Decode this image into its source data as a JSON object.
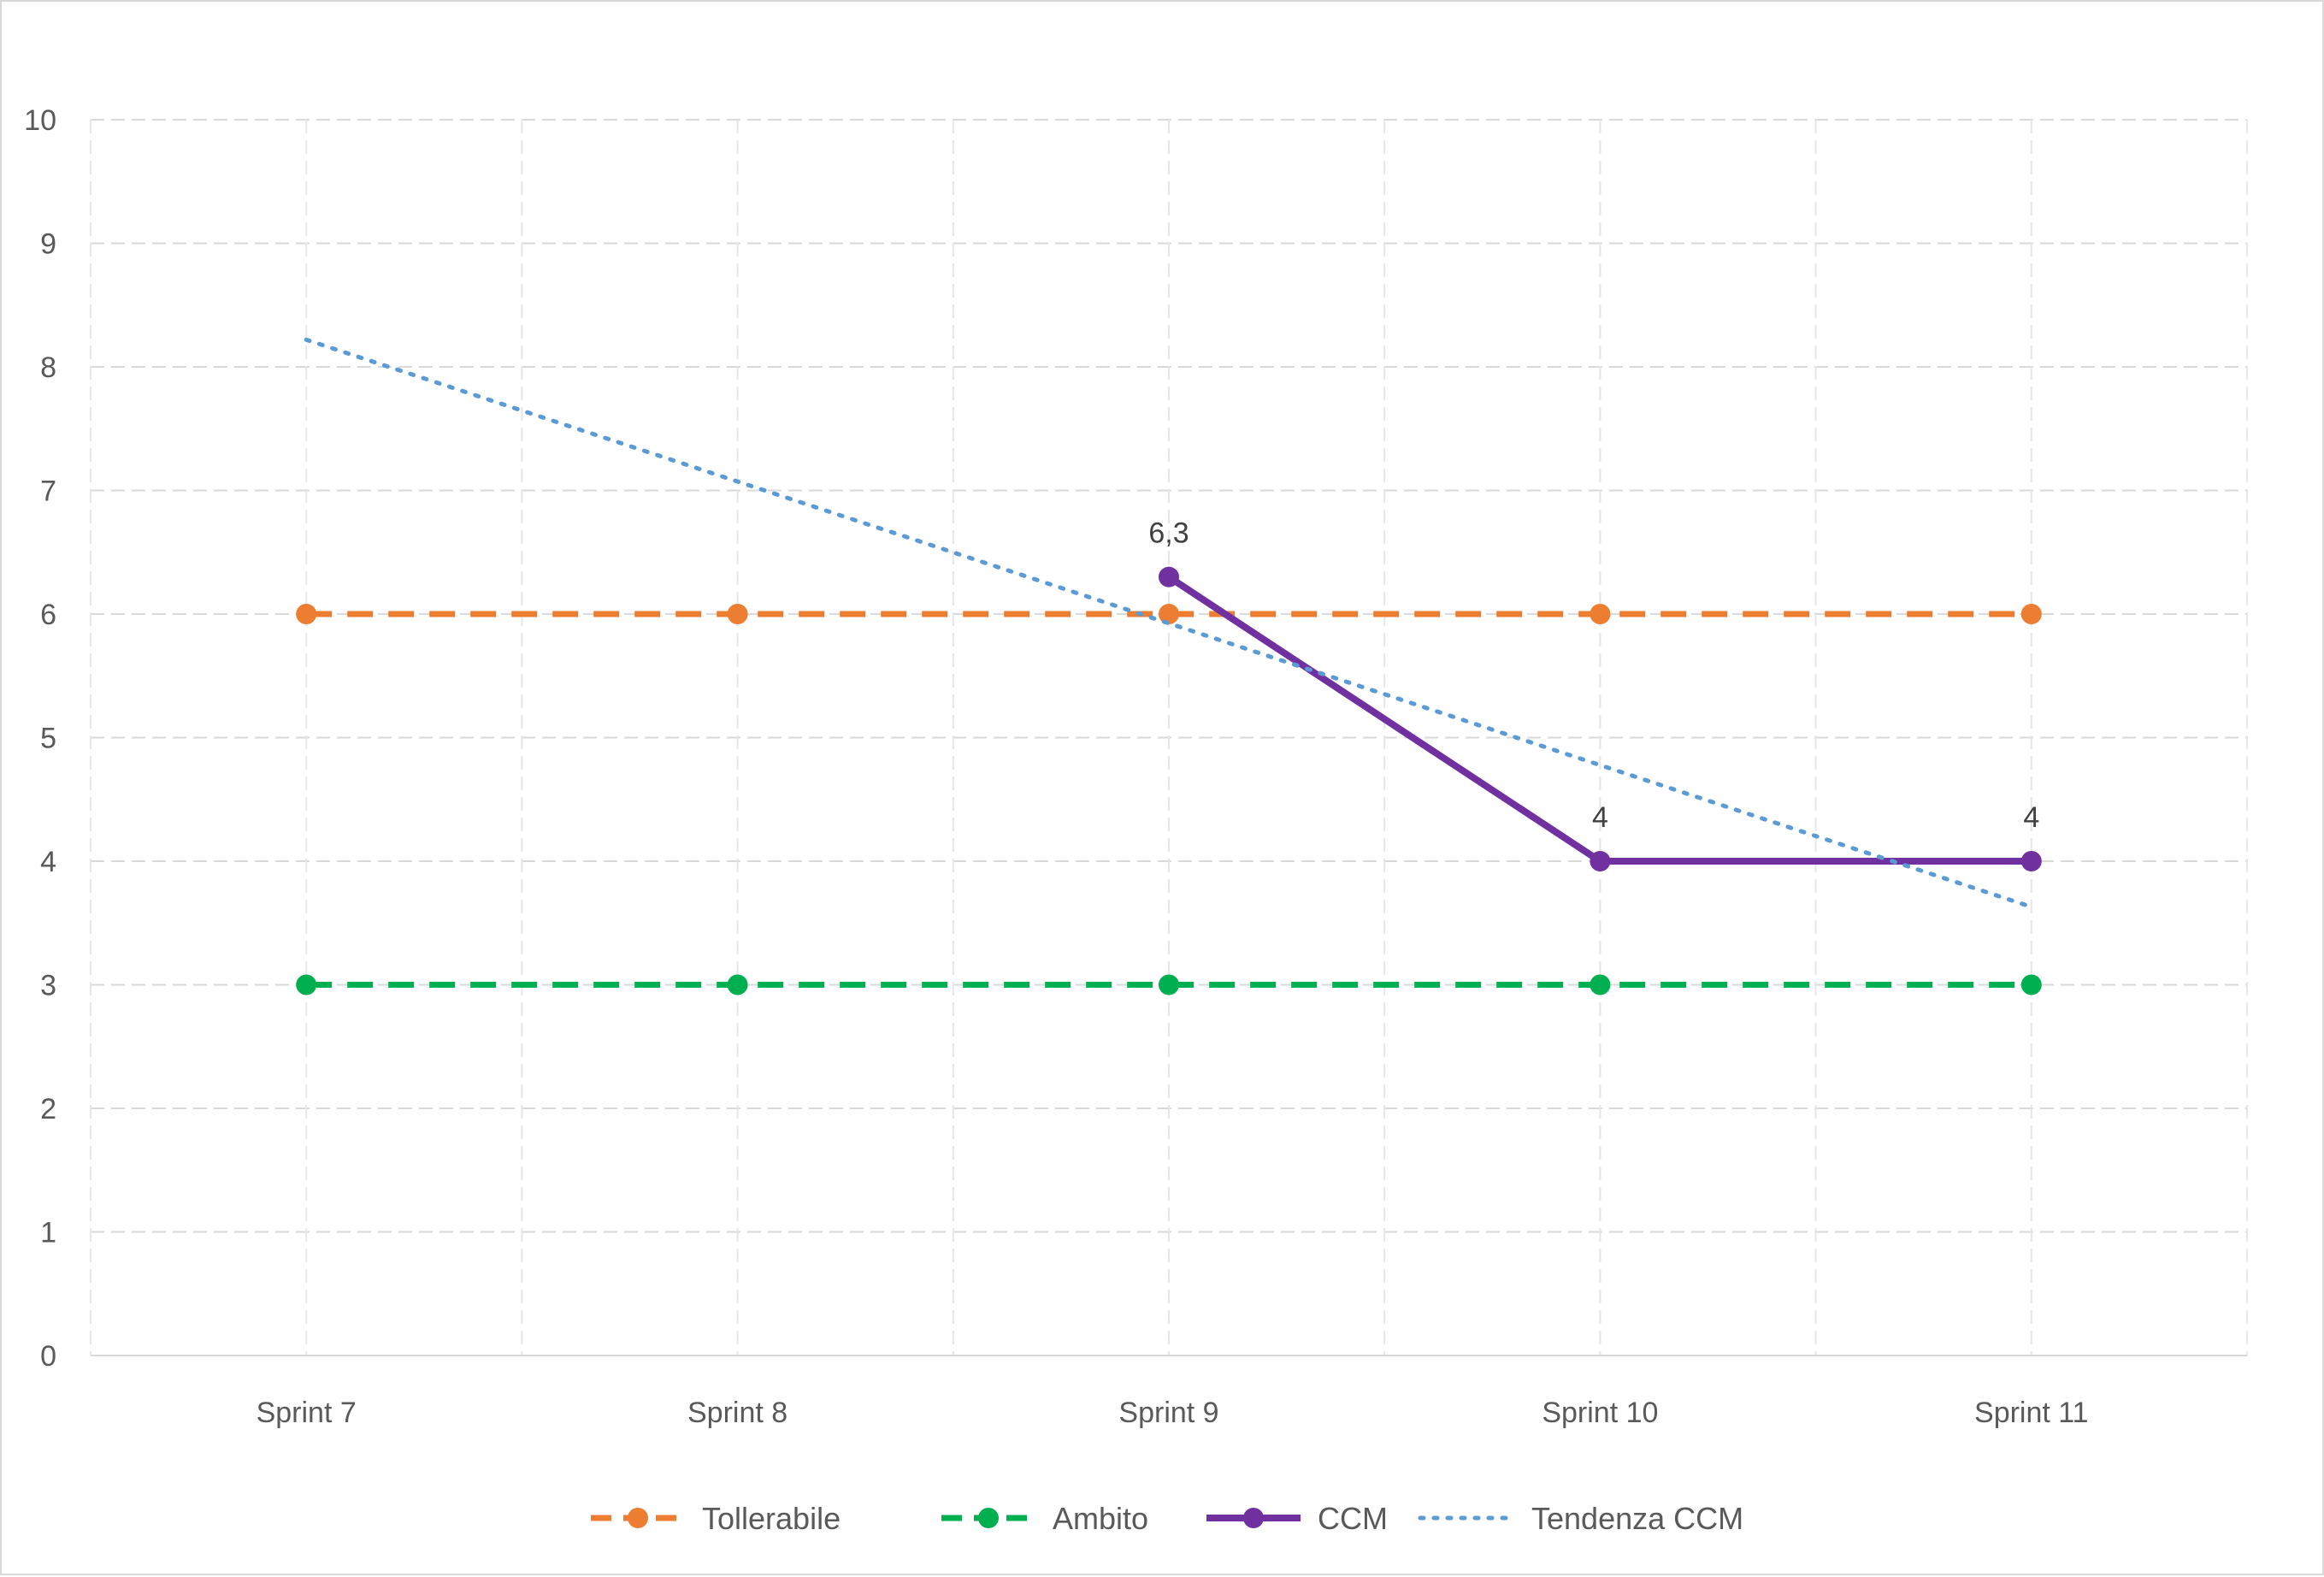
{
  "chart_data": {
    "type": "line",
    "title": "",
    "xlabel": "",
    "ylabel": "",
    "categories": [
      "Sprint 7",
      "Sprint 8",
      "Sprint 9",
      "Sprint 10",
      "Sprint 11"
    ],
    "ylim": [
      0,
      10
    ],
    "yticks": [
      "0",
      "1",
      "2",
      "3",
      "4",
      "5",
      "6",
      "7",
      "8",
      "9",
      "10"
    ],
    "grid": true,
    "legend_position": "bottom",
    "series": [
      {
        "name": "Tollerabile",
        "values": [
          6,
          6,
          6,
          6,
          6
        ],
        "color": "#ED7D31",
        "style": "dashed",
        "markers": true
      },
      {
        "name": "Ambito",
        "values": [
          3,
          3,
          3,
          3,
          3
        ],
        "color": "#00B050",
        "style": "dashed",
        "markers": true
      },
      {
        "name": "CCM",
        "values": [
          null,
          null,
          6.3,
          4,
          4
        ],
        "data_labels": [
          "",
          "",
          "6,3",
          "4",
          "4"
        ],
        "color": "#7030A0",
        "style": "solid",
        "markers": true
      },
      {
        "name": "Tendenza CCM",
        "trend": {
          "start": 8.22,
          "end": 3.63
        },
        "color": "#5B9BD5",
        "style": "dotted",
        "markers": false
      }
    ]
  }
}
